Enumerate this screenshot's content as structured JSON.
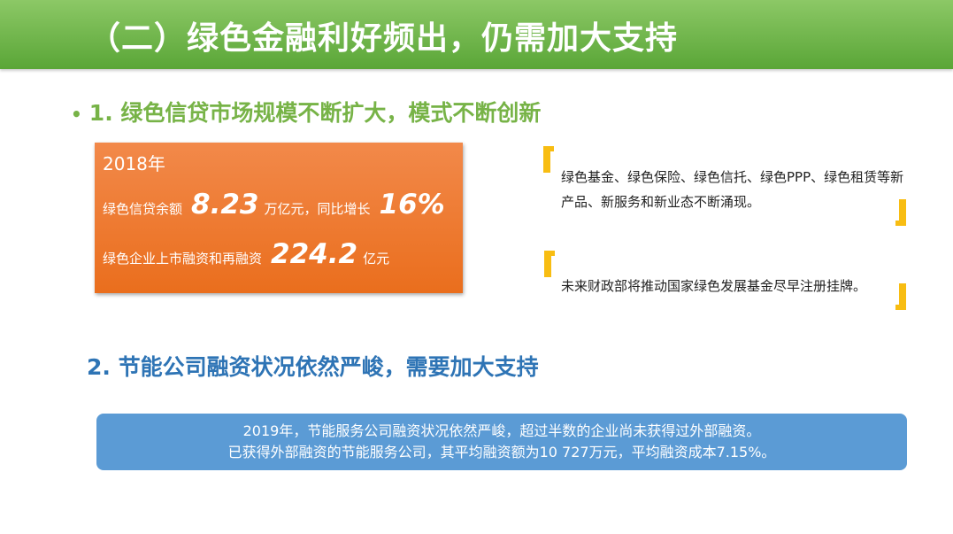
{
  "title": "（二）绿色金融利好频出，仍需加大支持",
  "section1": {
    "heading": "1. 绿色信贷市场规模不断扩大，模式不断创新",
    "card": {
      "year": "2018年",
      "row1_label": "绿色信贷余额",
      "row1_value": "8.23",
      "row1_unit": "万亿元",
      "row1_sep": "，同比增长",
      "row1_growth": "16%",
      "row2_label": "绿色企业上市融资和再融资",
      "row2_value": "224.2",
      "row2_unit": "亿元"
    },
    "quotes": [
      "绿色基金、绿色保险、绿色信托、绿色PPP、绿色租赁等新产品、新服务和新业态不断涌现。",
      "未来财政部将推动国家绿色发展基金尽早注册挂牌。"
    ]
  },
  "section2": {
    "heading": "2. 节能公司融资状况依然严峻，需要加大支持",
    "lines": [
      "2019年，节能服务公司融资状况依然严峻，超过半数的企业尚未获得过外部融资。",
      "已获得外部融资的节能服务公司，其平均融资额为10 727万元，平均融资成本7.15%。"
    ]
  },
  "colors": {
    "header": "#6ab245",
    "heading1": "#77b347",
    "heading2": "#2e74b5",
    "card": "#ee7b33",
    "bracket": "#f8bd12",
    "box": "#5b9bd5"
  }
}
